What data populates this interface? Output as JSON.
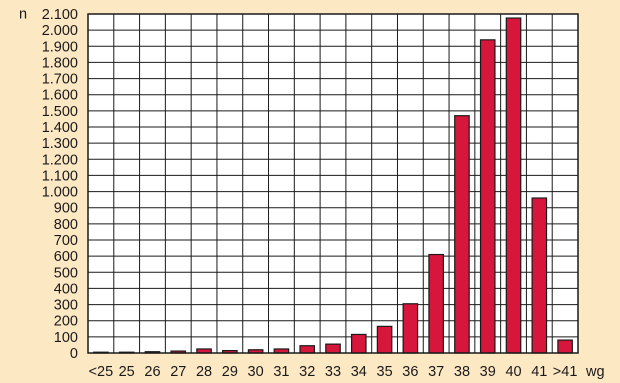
{
  "chart_data": {
    "type": "bar",
    "ylabel": "n",
    "xlabel": "wg",
    "ylim": [
      0,
      2100
    ],
    "y_ticks": [
      0,
      100,
      200,
      300,
      400,
      500,
      600,
      700,
      800,
      900,
      1000,
      1100,
      1200,
      1300,
      1400,
      1500,
      1600,
      1700,
      1800,
      1900,
      2000,
      2100
    ],
    "y_tick_labels": [
      "0",
      "100",
      "200",
      "300",
      "400",
      "500",
      "600",
      "700",
      "800",
      "900",
      "1.000",
      "1.100",
      "1.200",
      "1.300",
      "1.400",
      "1.500",
      "1.600",
      "1.700",
      "1.800",
      "1.900",
      "2.000",
      "2.100"
    ],
    "categories": [
      "<25",
      "25",
      "26",
      "27",
      "28",
      "29",
      "30",
      "31",
      "32",
      "33",
      "34",
      "35",
      "36",
      "37",
      "38",
      "39",
      "40",
      "41",
      ">41"
    ],
    "values": [
      5,
      5,
      8,
      12,
      25,
      15,
      20,
      25,
      45,
      55,
      115,
      165,
      305,
      610,
      1470,
      1940,
      2075,
      960,
      80
    ],
    "grid": true,
    "bar_color": "#d6163a"
  }
}
